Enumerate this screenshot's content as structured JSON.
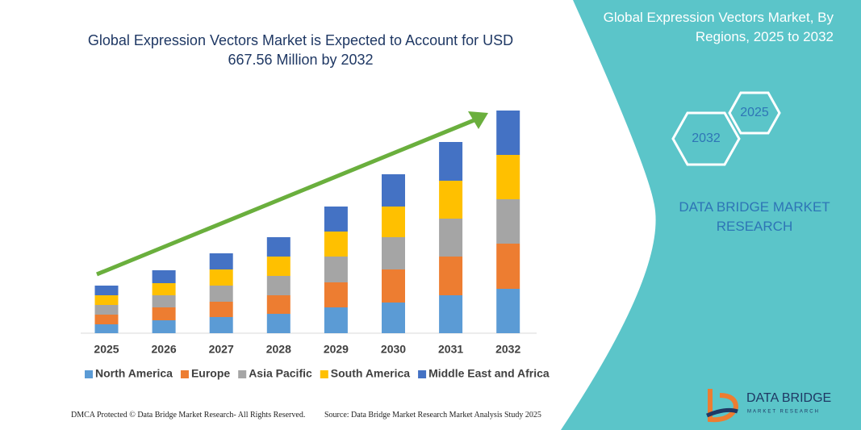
{
  "chart_data": {
    "type": "bar",
    "stacked": true,
    "title": "Global Expression Vectors Market is Expected to Account for USD 667.56 Million by 2032",
    "categories": [
      "2025",
      "2026",
      "2027",
      "2028",
      "2029",
      "2030",
      "2031",
      "2032"
    ],
    "series": [
      {
        "name": "North America",
        "color": "#5b9bd5",
        "values": [
          11,
          16,
          20,
          24,
          32,
          38,
          47,
          55
        ]
      },
      {
        "name": "Europe",
        "color": "#ed7d31",
        "values": [
          12,
          16,
          19,
          23,
          31,
          41,
          48,
          56
        ]
      },
      {
        "name": "Asia Pacific",
        "color": "#a5a5a5",
        "values": [
          12,
          15,
          20,
          24,
          32,
          40,
          47,
          55
        ]
      },
      {
        "name": "South America",
        "color": "#ffc000",
        "values": [
          12,
          15,
          20,
          24,
          31,
          38,
          47,
          55
        ]
      },
      {
        "name": "Middle East and Africa",
        "color": "#4472c4",
        "values": [
          12,
          16,
          20,
          24,
          31,
          40,
          48,
          55
        ]
      }
    ]
  },
  "panel": {
    "title": "Global Expression Vectors Market, By Regions, 2025 to 2032",
    "hexagons": [
      "2025",
      "2032"
    ],
    "brand": "DATA BRIDGE MARKET RESEARCH"
  },
  "logo": {
    "name": "DATA BRIDGE",
    "tagline": "MARKET RESEARCH"
  },
  "footer": {
    "left": "DMCA Protected © Data Bridge Market Research- All Rights Reserved.",
    "right": "Source: Data Bridge Market Research Market Analysis Study 2025"
  }
}
